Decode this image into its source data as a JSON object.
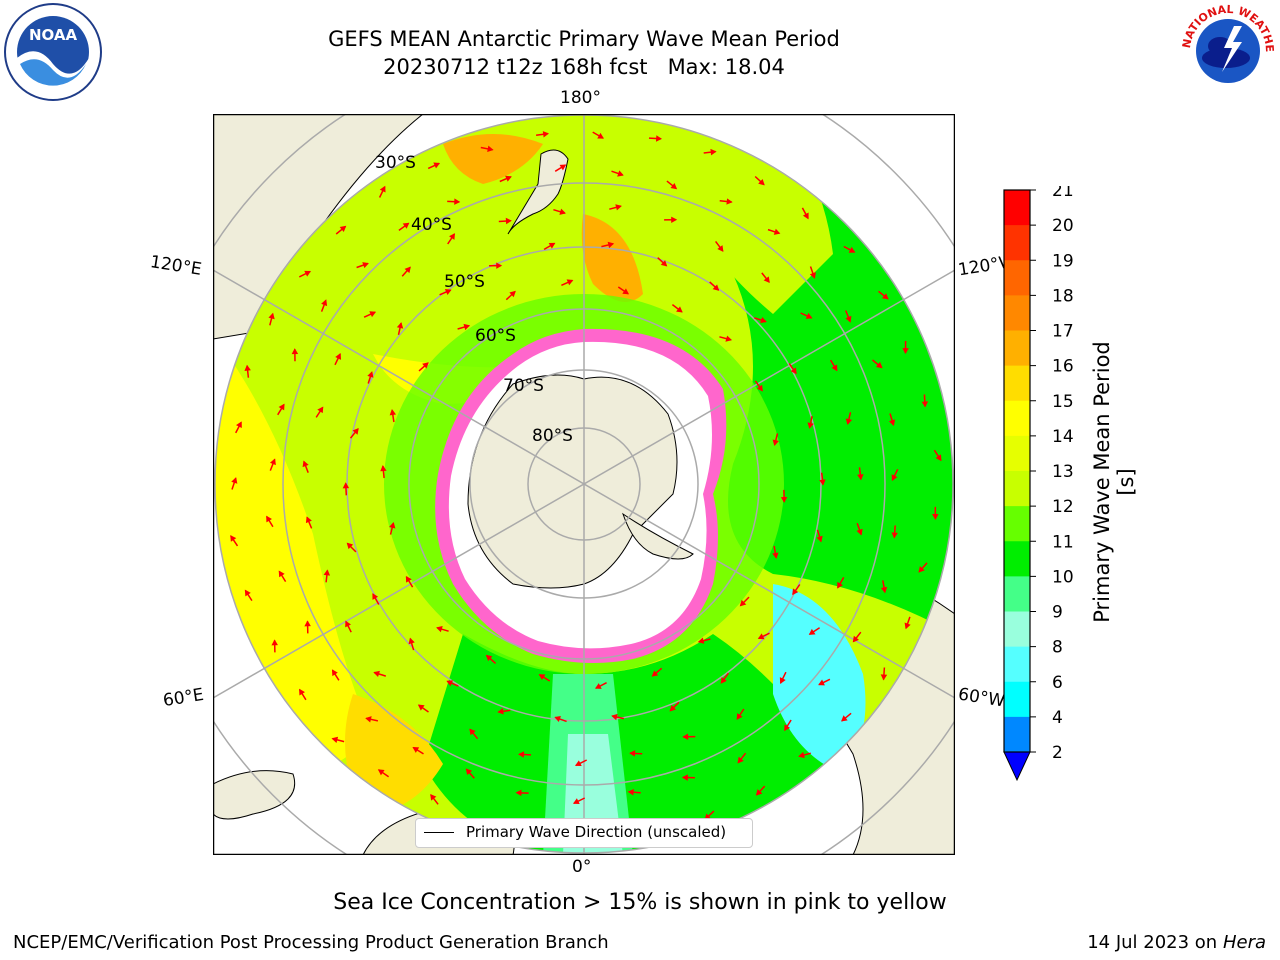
{
  "title": {
    "line1": "GEFS MEAN Antarctic Primary Wave Mean Period",
    "line2": "20230712 t12z 168h fcst   Max: 18.04"
  },
  "map": {
    "projection": "south-polar-stereographic",
    "longitude_labels": [
      "180°",
      "120°E",
      "60°E",
      "0°",
      "60°W",
      "120°W"
    ],
    "latitude_labels": [
      "30°S",
      "40°S",
      "50°S",
      "60°S",
      "70°S",
      "80°S"
    ],
    "land_color": "#efedda",
    "ice_color": "#ff66cc",
    "arrow_color": "#ff0000"
  },
  "legend": {
    "label": "Primary Wave Direction (unscaled)"
  },
  "colorbar": {
    "label": "Primary Wave Mean Period [s]",
    "ticks": [
      "21",
      "20",
      "19",
      "18",
      "17",
      "16",
      "15",
      "14",
      "13",
      "12",
      "11",
      "10",
      "9",
      "8",
      "6",
      "4",
      "2"
    ],
    "colors": [
      "#ff0000",
      "#ff3300",
      "#ff6600",
      "#ff8800",
      "#ffb000",
      "#ffdd00",
      "#ffff00",
      "#e6ff00",
      "#c8ff00",
      "#66ff00",
      "#00ee00",
      "#44ff88",
      "#99ffdd",
      "#55ffff",
      "#00ffff",
      "#0088ff",
      "#0000ff"
    ]
  },
  "caption": "Sea Ice Concentration > 15% is shown in pink to yellow",
  "footer": {
    "left": "NCEP/EMC/Verification Post Processing Product Generation Branch",
    "right_date": "14 Jul 2023 on ",
    "right_host": "Hera"
  },
  "logos": {
    "noaa_text": "NOAA",
    "nws_text": "NATIONAL WEATHER SERVICE"
  }
}
